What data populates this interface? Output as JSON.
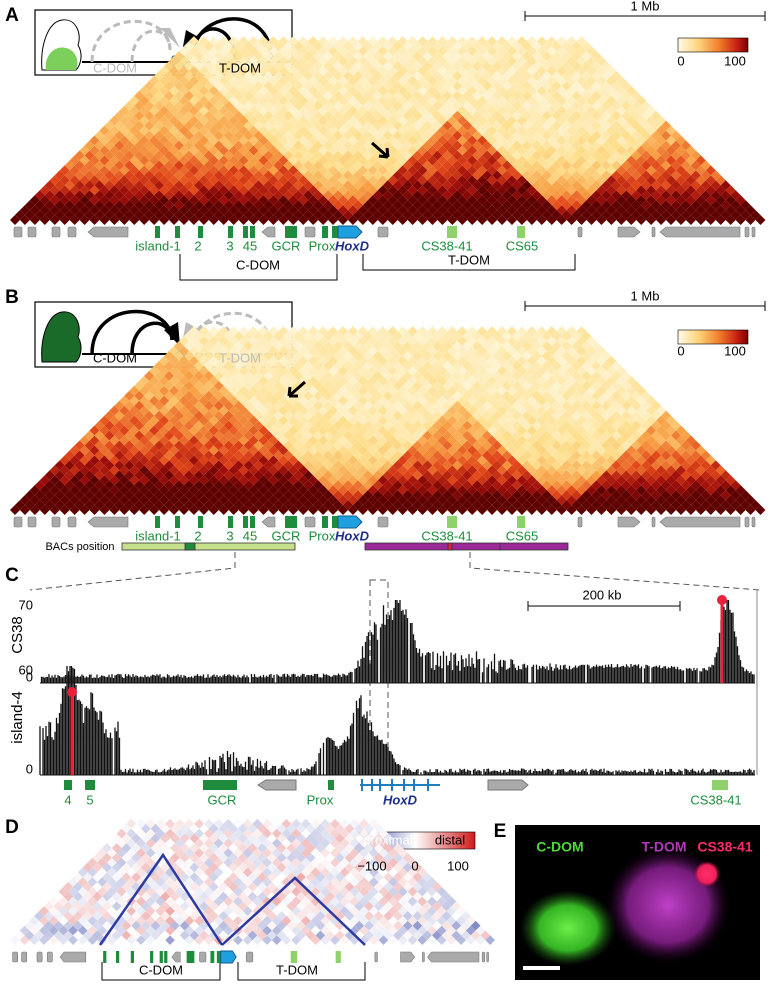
{
  "panel_a": {
    "label": "A",
    "inset": [
      "C-DOM",
      "T-DOM"
    ],
    "scale": "1 Mb",
    "colorbar": [
      "0",
      "100"
    ],
    "elements": [
      "island-1",
      "2",
      "3",
      "45",
      "GCR",
      "Prox",
      "HoxD",
      "CS38-41",
      "CS65"
    ],
    "domains": [
      "C-DOM",
      "T-DOM"
    ]
  },
  "panel_b": {
    "label": "B",
    "inset": [
      "C-DOM",
      "T-DOM"
    ],
    "scale": "1 Mb",
    "colorbar": [
      "0",
      "100"
    ],
    "elements": [
      "island-1",
      "2",
      "3",
      "45",
      "GCR",
      "Prox",
      "HoxD",
      "CS38-41",
      "CS65"
    ],
    "bacs": "BACs position"
  },
  "panel_c": {
    "label": "C",
    "tracks": [
      {
        "name": "CS38",
        "top": "70",
        "bottom": "0"
      },
      {
        "name": "island-4",
        "top": "60",
        "bottom": "0"
      }
    ],
    "scale": "200 kb",
    "elements": [
      "4",
      "5",
      "GCR",
      "Prox",
      "HoxD",
      "CS38-41"
    ]
  },
  "panel_d": {
    "label": "D",
    "colorbar": {
      "left": "proximal",
      "right": "distal",
      "ticks": [
        "−100",
        "0",
        "100"
      ]
    },
    "domains": [
      "C-DOM",
      "T-DOM"
    ]
  },
  "panel_e": {
    "label": "E",
    "channels": [
      "C-DOM",
      "T-DOM",
      "CS38-41"
    ]
  }
}
